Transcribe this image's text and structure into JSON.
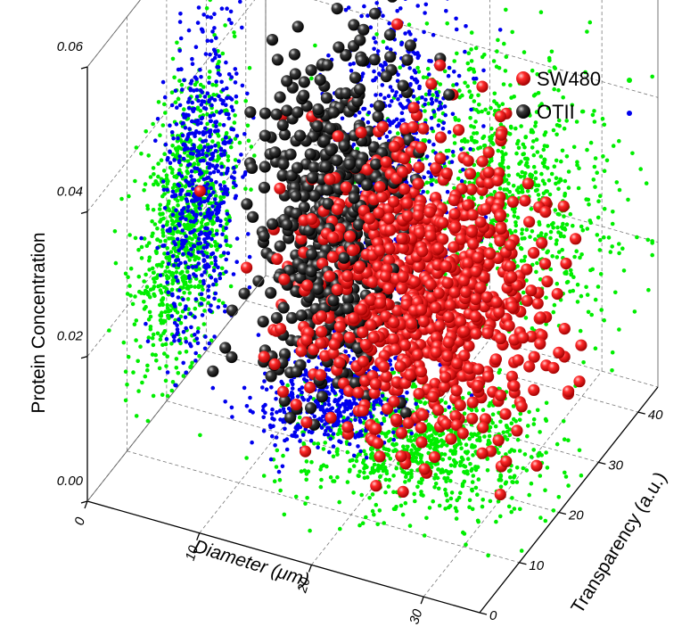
{
  "chart_data": {
    "type": "scatter",
    "projection": "3d",
    "title": "",
    "xlabel": "Diameter (μm)",
    "ylabel": "Transparency (a.u.)",
    "zlabel": "Protein Concentration",
    "xlim": [
      0,
      35
    ],
    "ylim": [
      0,
      45
    ],
    "zlim": [
      0,
      0.06
    ],
    "xticks": [
      {
        "value": 0,
        "label": "0"
      },
      {
        "value": 10,
        "label": "10"
      },
      {
        "value": 20,
        "label": "20"
      },
      {
        "value": 30,
        "label": "30"
      }
    ],
    "yticks": [
      {
        "value": 0,
        "label": "0"
      },
      {
        "value": 10,
        "label": "10"
      },
      {
        "value": 20,
        "label": "20"
      },
      {
        "value": 30,
        "label": "30"
      },
      {
        "value": 40,
        "label": "40"
      }
    ],
    "zticks": [
      {
        "value": 0,
        "label": "0.00"
      },
      {
        "value": 0.02,
        "label": "0.02"
      },
      {
        "value": 0.04,
        "label": "0.04"
      },
      {
        "value": 0.06,
        "label": "0.06"
      }
    ],
    "grid": true,
    "legend": {
      "placement": "top-right"
    },
    "series": [
      {
        "name": "SW480",
        "color": "#ff0000",
        "projection_color": "#00ee00",
        "marker": "sphere",
        "point_count": 900,
        "diameter_mean": 21,
        "diameter_sd": 5,
        "transparency_mean": 25,
        "transparency_sd": 6,
        "protein_mean": 0.021,
        "protein_sd": 0.009
      },
      {
        "name": "OTII",
        "color": "#000000",
        "projection_color": "#0000ee",
        "marker": "sphere",
        "point_count": 600,
        "diameter_mean": 12,
        "diameter_sd": 3,
        "transparency_mean": 29,
        "transparency_sd": 5,
        "protein_mean": 0.024,
        "protein_sd": 0.011
      }
    ]
  }
}
